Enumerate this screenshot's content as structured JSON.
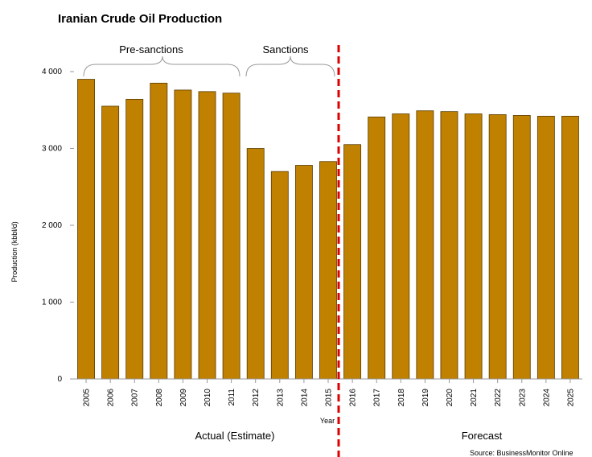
{
  "chart_data": {
    "type": "bar",
    "title": "Iranian Crude Oil Production",
    "xlabel": "Year",
    "ylabel": "Production (kbbl/d)",
    "ylim": [
      0,
      4000
    ],
    "yticks": [
      0,
      1000,
      2000,
      3000,
      4000
    ],
    "ytick_labels": [
      "0",
      "1 000",
      "2 000",
      "3 000",
      "4 000"
    ],
    "categories": [
      "2005",
      "2006",
      "2007",
      "2008",
      "2009",
      "2010",
      "2011",
      "2012",
      "2013",
      "2014",
      "2015",
      "2016",
      "2017",
      "2018",
      "2019",
      "2020",
      "2021",
      "2022",
      "2023",
      "2024",
      "2025"
    ],
    "values": [
      3900,
      3550,
      3640,
      3850,
      3760,
      3740,
      3720,
      3000,
      2700,
      2780,
      2830,
      3050,
      3410,
      3450,
      3490,
      3480,
      3450,
      3440,
      3430,
      3420,
      3420
    ],
    "bar_color": "#C08000",
    "bar_edge_color": "#5a3d00",
    "divider_color": "#dd0000",
    "annotations": {
      "pre_sanctions": "Pre-sanctions",
      "sanctions": "Sanctions",
      "actual": "Actual (Estimate)",
      "forecast": "Forecast",
      "source": "Source: BusinessMonitor Online"
    }
  }
}
